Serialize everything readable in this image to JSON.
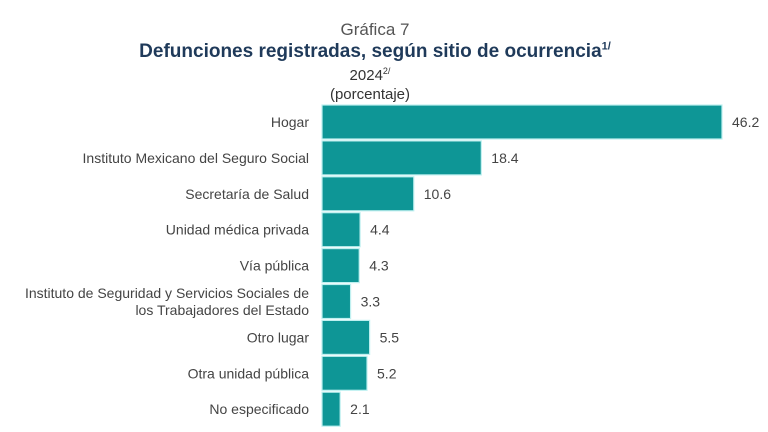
{
  "header": {
    "chart_number": "Gráfica 7",
    "title": "Defunciones registradas, según sitio de ocurrencia",
    "title_footnote": "1/",
    "year": "2024",
    "year_footnote": "2/",
    "unit": "(porcentaje)"
  },
  "colors": {
    "bar_fill": "#0e9696",
    "bar_stroke": "#bff0f0",
    "title": "#1f3a5a"
  },
  "chart_data": {
    "type": "bar",
    "orientation": "horizontal",
    "title": "Defunciones registradas, según sitio de ocurrencia",
    "subtitle": "2024 (porcentaje)",
    "xlabel": "",
    "ylabel": "",
    "xlim": [
      0,
      46.2
    ],
    "grid": false,
    "categories": [
      [
        "Hogar"
      ],
      [
        "Instituto Mexicano del Seguro Social"
      ],
      [
        "Secretaría de Salud"
      ],
      [
        "Unidad médica privada"
      ],
      [
        "Vía pública"
      ],
      [
        "Instituto de Seguridad y Servicios Sociales de",
        "los Trabajadores del Estado"
      ],
      [
        "Otro lugar"
      ],
      [
        "Otra unidad pública"
      ],
      [
        "No especificado"
      ]
    ],
    "values": [
      46.2,
      18.4,
      10.6,
      4.4,
      4.3,
      3.3,
      5.5,
      5.2,
      2.1
    ],
    "value_labels": [
      "46.2",
      "18.4",
      "10.6",
      "4.4",
      "4.3",
      "3.3",
      "5.5",
      "5.2",
      "2.1"
    ]
  }
}
